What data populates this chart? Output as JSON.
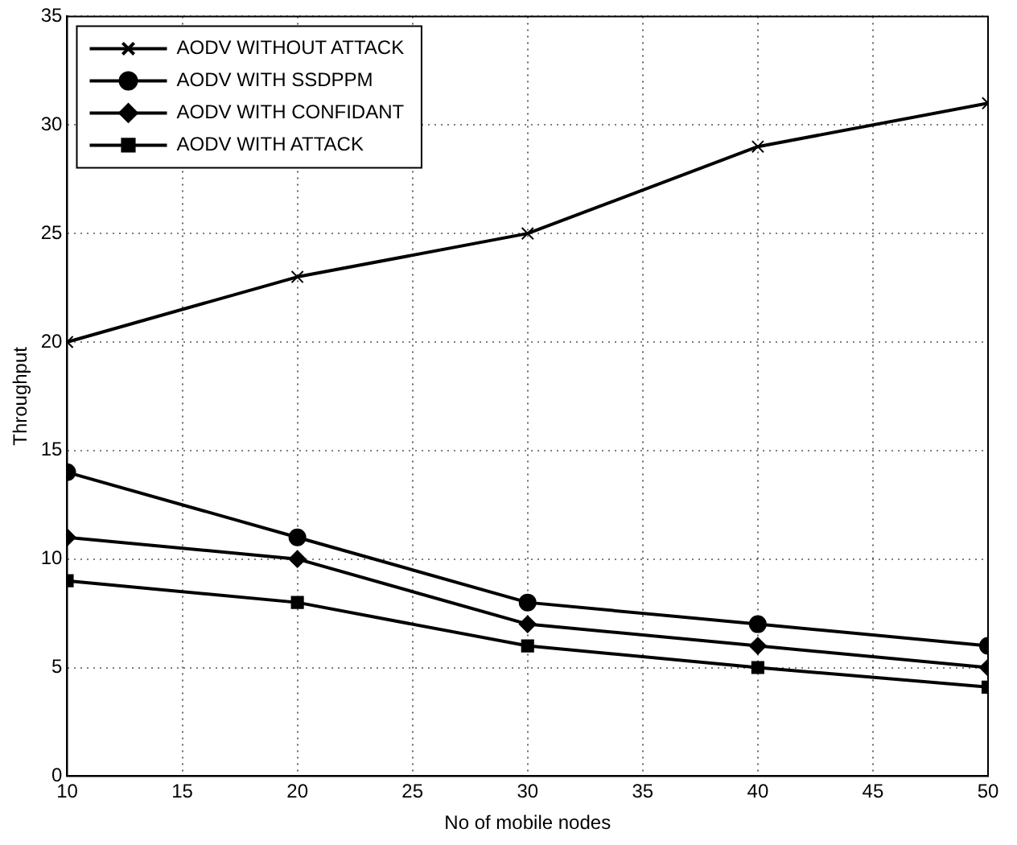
{
  "chart_data": {
    "type": "line",
    "xlabel": "No of mobile nodes",
    "ylabel": "Throughput",
    "x": [
      10,
      20,
      30,
      40,
      50
    ],
    "series": [
      {
        "name": "AODV WITHOUT ATTACK",
        "color": "#000000",
        "marker": "cross",
        "values": [
          20,
          23,
          25,
          29,
          31
        ]
      },
      {
        "name": "AODV WITH SSDPPM",
        "color": "#000000",
        "marker": "circle",
        "values": [
          14,
          11,
          8,
          7,
          6
        ]
      },
      {
        "name": "AODV WITH CONFIDANT",
        "color": "#000000",
        "marker": "diamond",
        "values": [
          11,
          10,
          7,
          6,
          5
        ]
      },
      {
        "name": "AODV WITH ATTACK",
        "color": "#000000",
        "marker": "square",
        "values": [
          9,
          8,
          6,
          5,
          4.1
        ]
      }
    ],
    "xlim": [
      10,
      50
    ],
    "xticks": [
      10,
      15,
      20,
      25,
      30,
      35,
      40,
      45,
      50
    ],
    "ylim": [
      0,
      35
    ],
    "yticks": [
      0,
      5,
      10,
      15,
      20,
      25,
      30,
      35
    ],
    "grid": true,
    "legend": "top left",
    "line_style": "solid"
  }
}
